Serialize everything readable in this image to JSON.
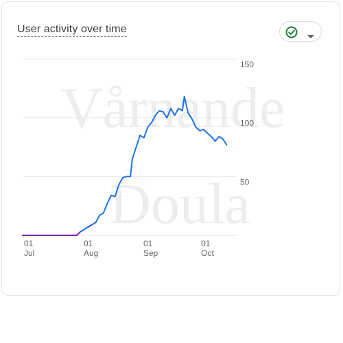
{
  "card": {
    "title": "User activity over time",
    "status_icon": "check-circle-icon",
    "dropdown_icon": "caret-down-icon",
    "status_color": "#188038"
  },
  "watermark": {
    "line1": "Vårnande",
    "line2": "Doula"
  },
  "chart_data": {
    "type": "line",
    "title": "User activity over time",
    "xlabel": "",
    "ylabel": "",
    "x_range": [
      "2023-07-01",
      "2023-10-17"
    ],
    "ylim": [
      0,
      150
    ],
    "y_ticks": [
      50,
      100,
      150
    ],
    "y_axis_side": "right",
    "grid": true,
    "x_ticks": [
      {
        "date": "2023-07-01",
        "day": "01",
        "month": "Jul"
      },
      {
        "date": "2023-08-01",
        "day": "01",
        "month": "Aug"
      },
      {
        "date": "2023-09-01",
        "day": "01",
        "month": "Sep"
      },
      {
        "date": "2023-10-01",
        "day": "01",
        "month": "Oct"
      }
    ],
    "series": [
      {
        "color": "#7b1fa2",
        "points": [
          [
            "2023-07-01",
            0
          ],
          [
            "2023-07-10",
            0
          ],
          [
            "2023-07-20",
            0
          ],
          [
            "2023-07-29",
            0
          ],
          [
            "2023-07-31",
            3
          ],
          [
            "2023-08-03",
            6
          ],
          [
            "2023-08-06",
            9
          ],
          [
            "2023-08-08",
            11
          ]
        ]
      },
      {
        "color": "#1a73e8",
        "points": [
          [
            "2023-07-31",
            3
          ],
          [
            "2023-08-03",
            6
          ],
          [
            "2023-08-06",
            9
          ],
          [
            "2023-08-08",
            11
          ],
          [
            "2023-08-10",
            17
          ],
          [
            "2023-08-12",
            19
          ],
          [
            "2023-08-14",
            27
          ],
          [
            "2023-08-16",
            34
          ],
          [
            "2023-08-18",
            33
          ],
          [
            "2023-08-20",
            43
          ],
          [
            "2023-08-22",
            49
          ],
          [
            "2023-08-24",
            50
          ],
          [
            "2023-08-26",
            50
          ],
          [
            "2023-08-27",
            65
          ],
          [
            "2023-08-29",
            75
          ],
          [
            "2023-08-31",
            85
          ],
          [
            "2023-09-02",
            83
          ],
          [
            "2023-09-04",
            92
          ],
          [
            "2023-09-06",
            96
          ],
          [
            "2023-09-08",
            102
          ],
          [
            "2023-09-10",
            106
          ],
          [
            "2023-09-12",
            105
          ],
          [
            "2023-09-14",
            100
          ],
          [
            "2023-09-16",
            108
          ],
          [
            "2023-09-18",
            102
          ],
          [
            "2023-09-20",
            108
          ],
          [
            "2023-09-22",
            106
          ],
          [
            "2023-09-23",
            118
          ],
          [
            "2023-09-25",
            104
          ],
          [
            "2023-09-27",
            99
          ],
          [
            "2023-09-29",
            92
          ],
          [
            "2023-10-01",
            89
          ],
          [
            "2023-10-03",
            90
          ],
          [
            "2023-10-05",
            87
          ],
          [
            "2023-10-07",
            84
          ],
          [
            "2023-10-09",
            80
          ],
          [
            "2023-10-11",
            84
          ],
          [
            "2023-10-13",
            82
          ],
          [
            "2023-10-15",
            77
          ]
        ]
      }
    ]
  }
}
